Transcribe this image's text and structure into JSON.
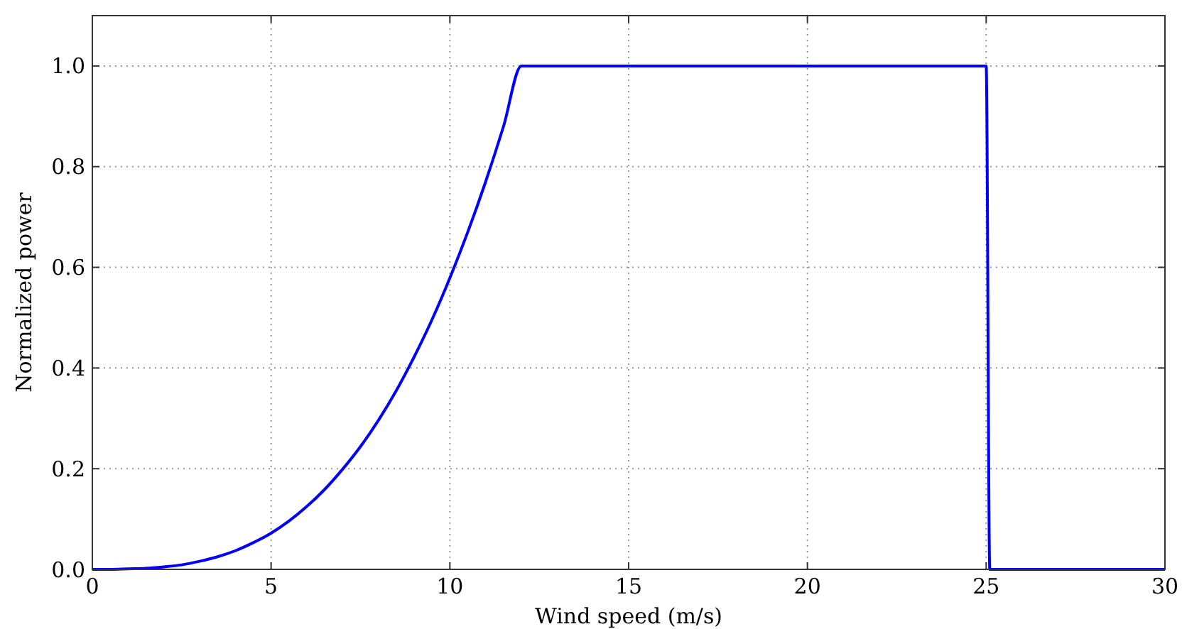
{
  "chart_data": {
    "type": "line",
    "xlabel": "Wind speed (m/s)",
    "ylabel": "Normalized power",
    "x": [
      0,
      0.5,
      1,
      1.5,
      2,
      2.5,
      3,
      3.5,
      4,
      4.5,
      5,
      5.5,
      6,
      6.5,
      7,
      7.5,
      8,
      8.5,
      9,
      9.5,
      10,
      10.5,
      11,
      11.5,
      12,
      25,
      25.1,
      30
    ],
    "series": [
      {
        "color": "#0000ff",
        "values": [
          0,
          0,
          0.001,
          0.002,
          0.005,
          0.009,
          0.016,
          0.025,
          0.037,
          0.053,
          0.072,
          0.096,
          0.125,
          0.159,
          0.199,
          0.244,
          0.296,
          0.355,
          0.422,
          0.496,
          0.579,
          0.67,
          0.77,
          0.88,
          1,
          1,
          0,
          0
        ]
      }
    ],
    "xlim": [
      0,
      30
    ],
    "xticks": [
      0,
      5,
      10,
      15,
      20,
      25,
      30
    ],
    "ylim": [
      0,
      1.1
    ],
    "yticks": [
      {
        "value": 0,
        "label": "0.0"
      },
      {
        "value": 0.2,
        "label": "0.2"
      },
      {
        "value": 0.4,
        "label": "0.4"
      },
      {
        "value": 0.6,
        "label": "0.6"
      },
      {
        "value": 0.8,
        "label": "0.8"
      },
      {
        "value": 1,
        "label": "1.0"
      }
    ],
    "grid": true,
    "marker": "none",
    "line_style": "solid"
  }
}
